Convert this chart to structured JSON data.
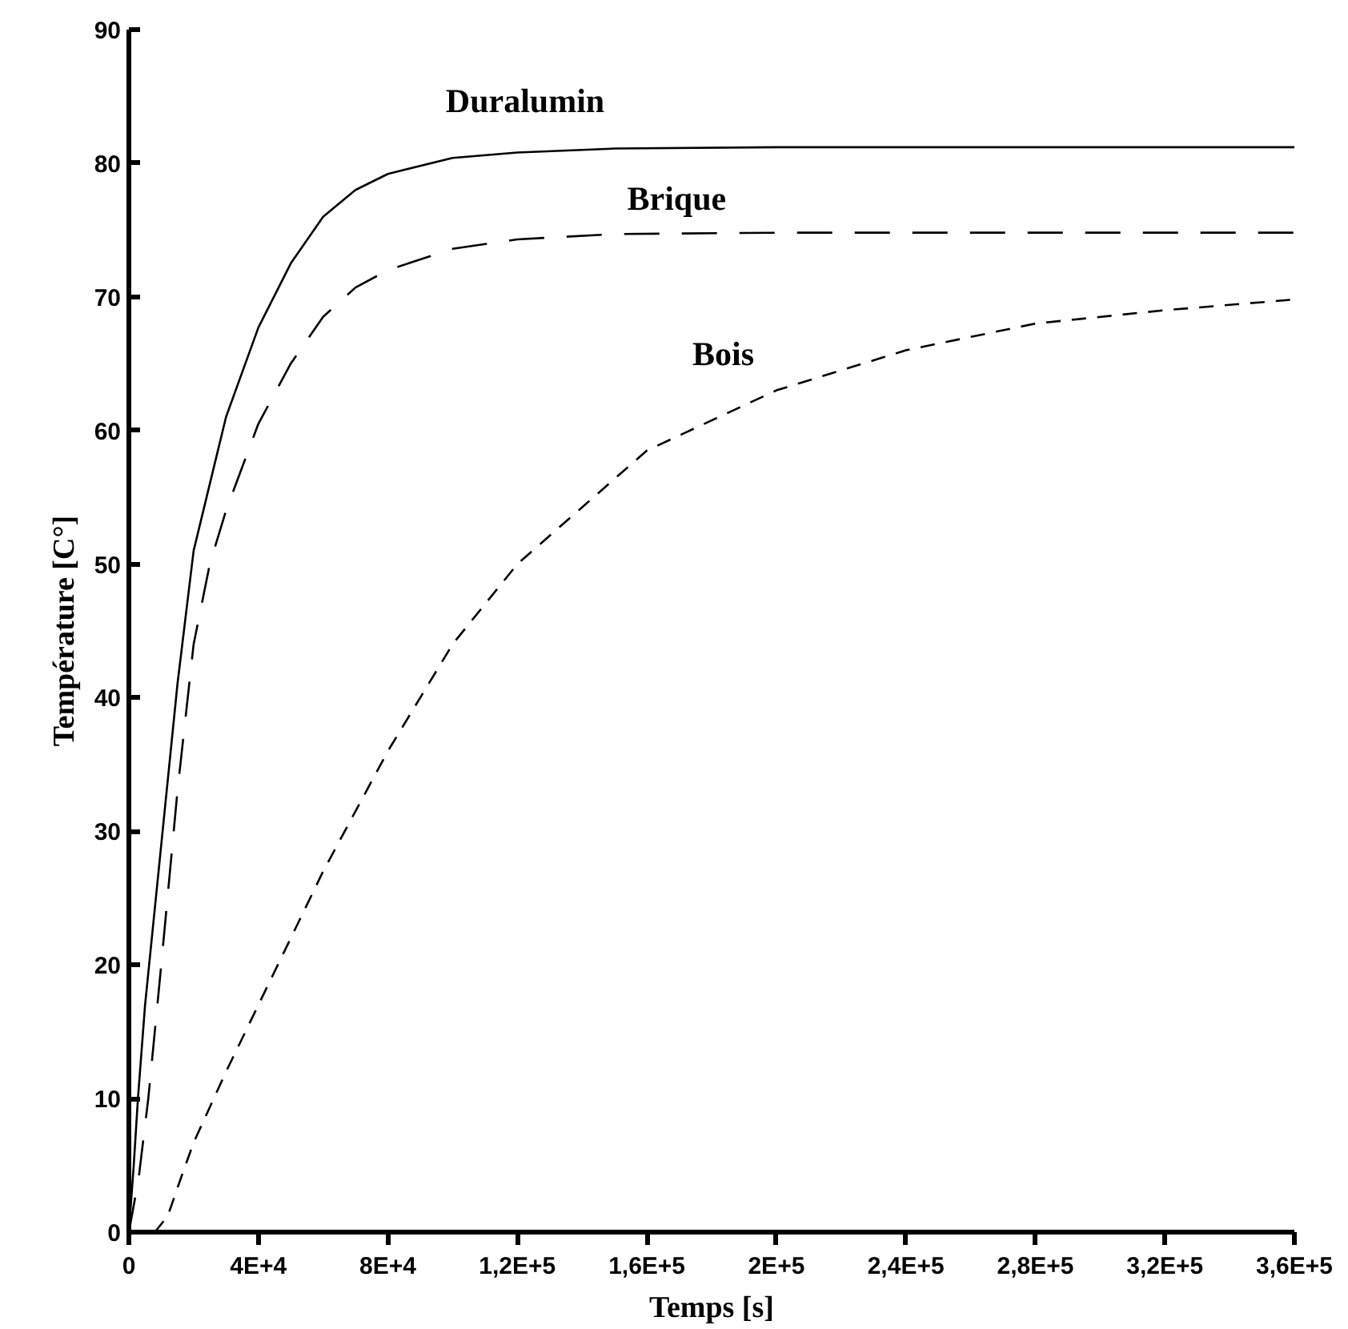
{
  "chart_data": {
    "type": "line",
    "xlabel": "Temps [s]",
    "ylabel": "Température [C°]",
    "xlim": [
      0,
      360000
    ],
    "ylim": [
      0,
      90
    ],
    "xticks": [
      0,
      {
        "value": 40000,
        "label": "4E+4"
      },
      {
        "value": 80000,
        "label": "8E+4"
      },
      {
        "value": 120000,
        "label": "1,2E+5"
      },
      {
        "value": 160000,
        "label": "1,6E+5"
      },
      {
        "value": 200000,
        "label": "2E+5"
      },
      {
        "value": 240000,
        "label": "2,4E+5"
      },
      {
        "value": 280000,
        "label": "2,8E+5"
      },
      {
        "value": 320000,
        "label": "3,2E+5"
      },
      {
        "value": 360000,
        "label": "3,6E+5"
      }
    ],
    "yticks": [
      0,
      10,
      20,
      30,
      40,
      50,
      60,
      70,
      80,
      90
    ],
    "marker": "none",
    "series": [
      {
        "name": "Duralumin",
        "color": "#000000",
        "line_style": "solid",
        "x": [
          0,
          1500,
          2800,
          5000,
          10000,
          15000,
          20000,
          30000,
          40000,
          50000,
          60000,
          70000,
          80000,
          100000,
          120000,
          150000,
          200000,
          260000,
          360000
        ],
        "values": [
          0,
          5,
          10,
          17,
          29,
          41,
          51,
          61,
          67.7,
          72.5,
          76,
          78,
          79.2,
          80.4,
          80.8,
          81.1,
          81.2,
          81.2,
          81.2
        ]
      },
      {
        "name": "Brique",
        "color": "#000000",
        "line_style": "dashed",
        "x": [
          0,
          3000,
          6000,
          10000,
          15000,
          20000,
          25000,
          30000,
          40000,
          50000,
          60000,
          70000,
          80000,
          100000,
          120000,
          150000,
          200000,
          260000,
          360000
        ],
        "values": [
          0,
          4,
          10,
          20,
          33,
          44,
          50,
          54,
          60.5,
          65,
          68.5,
          70.7,
          72,
          73.6,
          74.3,
          74.7,
          74.8,
          74.8,
          74.8
        ]
      },
      {
        "name": "Bois",
        "color": "#000000",
        "line_style": "dashed",
        "x": [
          0,
          4000,
          8000,
          12000,
          16000,
          20000,
          30000,
          40000,
          60000,
          80000,
          100000,
          120000,
          160000,
          200000,
          240000,
          280000,
          320000,
          360000
        ],
        "values": [
          0,
          0,
          0,
          1.2,
          4,
          6.7,
          12,
          17,
          27,
          36,
          44,
          50,
          58.5,
          63,
          66,
          68,
          69,
          69.8
        ]
      }
    ]
  }
}
